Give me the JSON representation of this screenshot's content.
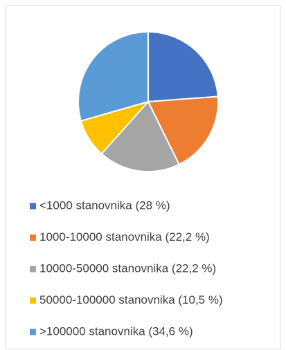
{
  "chart_data": {
    "type": "pie",
    "categories": [
      "<1000 stanovnika (28 %)",
      "1000-10000 stanovnika (22,2 %)",
      "10000-50000 stanovnika (22,2 %)",
      "50000-100000 stanovnika (10,5 %)",
      ">100000 stanovnika (34,6 %)"
    ],
    "values": [
      28,
      22.2,
      22.2,
      10.5,
      34.6
    ],
    "colors": [
      "#4472c4",
      "#ed7d31",
      "#a5a5a5",
      "#ffc000",
      "#5b9bd5"
    ],
    "legend": "bottom"
  }
}
